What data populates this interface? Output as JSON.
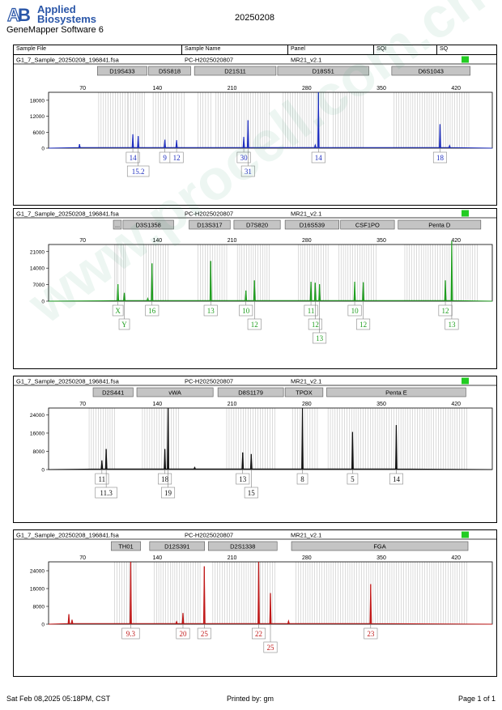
{
  "header": {
    "brand_line1": "Applied",
    "brand_line2": "Biosystems",
    "software": "GeneMapper Software 6",
    "date": "20250208",
    "columns": [
      "Sample File",
      "Sample Name",
      "Panel",
      "SQI",
      "SQ"
    ]
  },
  "footer": {
    "printed_at": "Sat Feb 08,2025 05:18PM, CST",
    "printed_by": "Printed by: gm",
    "page": "Page 1 of 1"
  },
  "watermark": "www.procell.com.cn",
  "status_color": "#22cc22",
  "chart_data": [
    {
      "type": "line",
      "sample_file": "G1_7_Sample_20250208_196841.fsa",
      "sample_name": "PC-H2025020807",
      "panel": "MR21_v2.1",
      "color": "#1f2fbf",
      "x_ticks": [
        70,
        140,
        210,
        280,
        350,
        420
      ],
      "y_ticks": [
        0,
        6000,
        12000,
        18000
      ],
      "ylim": [
        0,
        21000
      ],
      "markers": [
        {
          "label": "D19S433",
          "x0": 83,
          "x1": 131
        },
        {
          "label": "D5S818",
          "x0": 131,
          "x1": 172
        },
        {
          "label": "D21S11",
          "x0": 174,
          "x1": 252
        },
        {
          "label": "D18S51",
          "x0": 252,
          "x1": 339
        },
        {
          "label": "D6S1043",
          "x0": 359,
          "x1": 434
        }
      ],
      "peaks": [
        {
          "x": 67,
          "h": 1500
        },
        {
          "x": 117,
          "h": 5200
        },
        {
          "x": 122,
          "h": 4500
        },
        {
          "x": 147,
          "h": 3200
        },
        {
          "x": 158,
          "h": 3000
        },
        {
          "x": 221,
          "h": 4200
        },
        {
          "x": 225,
          "h": 10500
        },
        {
          "x": 291,
          "h": 21000
        },
        {
          "x": 288,
          "h": 1200
        },
        {
          "x": 405,
          "h": 9000
        },
        {
          "x": 414,
          "h": 1000
        }
      ],
      "alleles": [
        {
          "x": 117,
          "row": 1,
          "text": "14"
        },
        {
          "x": 122,
          "row": 2,
          "text": "15.2"
        },
        {
          "x": 147,
          "row": 1,
          "text": "9"
        },
        {
          "x": 158,
          "row": 1,
          "text": "12"
        },
        {
          "x": 221,
          "row": 1,
          "text": "30"
        },
        {
          "x": 225,
          "row": 2,
          "text": "31"
        },
        {
          "x": 291,
          "row": 1,
          "text": "14"
        },
        {
          "x": 405,
          "row": 1,
          "text": "18"
        }
      ],
      "bins": [
        [
          85,
          112
        ],
        [
          113,
          128
        ],
        [
          136,
          150
        ],
        [
          153,
          165
        ],
        [
          178,
          190
        ],
        [
          195,
          245
        ],
        [
          258,
          300
        ],
        [
          305,
          333
        ],
        [
          362,
          432
        ]
      ]
    },
    {
      "type": "line",
      "sample_file": "G1_7_Sample_20250208_196841.fsa",
      "sample_name": "PC-H2025020807",
      "panel": "MR21_v2.1",
      "color": "#1e9e1e",
      "x_ticks": [
        70,
        140,
        210,
        280,
        350,
        420
      ],
      "y_ticks": [
        0,
        7000,
        14000,
        21000
      ],
      "ylim": [
        0,
        24000
      ],
      "markers": [
        {
          "label": "...",
          "x0": 98,
          "x1": 107
        },
        {
          "label": "D3S1358",
          "x0": 107,
          "x1": 156
        },
        {
          "label": "D13S317",
          "x0": 169,
          "x1": 209
        },
        {
          "label": "D7S820",
          "x0": 211,
          "x1": 256
        },
        {
          "label": "D16S539",
          "x0": 259,
          "x1": 311
        },
        {
          "label": "CSF1PO",
          "x0": 311,
          "x1": 363
        },
        {
          "label": "Penta D",
          "x0": 365,
          "x1": 444
        }
      ],
      "peaks": [
        {
          "x": 103,
          "h": 7200
        },
        {
          "x": 109,
          "h": 3500
        },
        {
          "x": 135,
          "h": 16000
        },
        {
          "x": 131,
          "h": 1200
        },
        {
          "x": 190,
          "h": 17000
        },
        {
          "x": 223,
          "h": 4500
        },
        {
          "x": 231,
          "h": 8800
        },
        {
          "x": 284,
          "h": 8200
        },
        {
          "x": 288,
          "h": 7800
        },
        {
          "x": 292,
          "h": 7200
        },
        {
          "x": 325,
          "h": 8200
        },
        {
          "x": 333,
          "h": 8000
        },
        {
          "x": 410,
          "h": 8800
        },
        {
          "x": 416,
          "h": 25500
        }
      ],
      "alleles": [
        {
          "x": 103,
          "row": 1,
          "text": "X"
        },
        {
          "x": 109,
          "row": 2,
          "text": "Y"
        },
        {
          "x": 135,
          "row": 1,
          "text": "16"
        },
        {
          "x": 190,
          "row": 1,
          "text": "13"
        },
        {
          "x": 223,
          "row": 1,
          "text": "10"
        },
        {
          "x": 231,
          "row": 2,
          "text": "12"
        },
        {
          "x": 284,
          "row": 1,
          "text": "11"
        },
        {
          "x": 288,
          "row": 2,
          "text": "12"
        },
        {
          "x": 292,
          "row": 3,
          "text": "13"
        },
        {
          "x": 325,
          "row": 1,
          "text": "10"
        },
        {
          "x": 333,
          "row": 2,
          "text": "12"
        },
        {
          "x": 410,
          "row": 1,
          "text": "12"
        },
        {
          "x": 416,
          "row": 2,
          "text": "13"
        }
      ],
      "bins": [
        [
          100,
          103
        ],
        [
          106,
          110
        ],
        [
          127,
          150
        ],
        [
          178,
          205
        ],
        [
          215,
          245
        ],
        [
          272,
          300
        ],
        [
          310,
          345
        ],
        [
          372,
          440
        ]
      ]
    },
    {
      "type": "line",
      "sample_file": "G1_7_Sample_20250208_196841.fsa",
      "sample_name": "PC-H2025020807",
      "panel": "MR21_v2.1",
      "color": "#111111",
      "x_ticks": [
        70,
        140,
        210,
        280,
        350,
        420
      ],
      "y_ticks": [
        0,
        8000,
        16000,
        24000
      ],
      "ylim": [
        0,
        27000
      ],
      "markers": [
        {
          "label": "D2S441",
          "x0": 79,
          "x1": 118
        },
        {
          "label": "vWA",
          "x0": 120,
          "x1": 193
        },
        {
          "label": "D8S1179",
          "x0": 196,
          "x1": 259
        },
        {
          "label": "TPOX",
          "x0": 259,
          "x1": 296
        },
        {
          "label": "Penta E",
          "x0": 298,
          "x1": 430
        }
      ],
      "peaks": [
        {
          "x": 88,
          "h": 4000
        },
        {
          "x": 92,
          "h": 9000
        },
        {
          "x": 147,
          "h": 9000
        },
        {
          "x": 150,
          "h": 27000
        },
        {
          "x": 220,
          "h": 7500
        },
        {
          "x": 228,
          "h": 6800
        },
        {
          "x": 276,
          "h": 27000
        },
        {
          "x": 323,
          "h": 16500
        },
        {
          "x": 364,
          "h": 19500
        },
        {
          "x": 175,
          "h": 1000
        }
      ],
      "alleles": [
        {
          "x": 88,
          "row": 1,
          "text": "11"
        },
        {
          "x": 92,
          "row": 2,
          "text": "11.3"
        },
        {
          "x": 147,
          "row": 1,
          "text": "18"
        },
        {
          "x": 150,
          "row": 2,
          "text": "19"
        },
        {
          "x": 220,
          "row": 1,
          "text": "13"
        },
        {
          "x": 228,
          "row": 2,
          "text": "15"
        },
        {
          "x": 276,
          "row": 1,
          "text": "8"
        },
        {
          "x": 323,
          "row": 1,
          "text": "5"
        },
        {
          "x": 364,
          "row": 1,
          "text": "14"
        }
      ],
      "bins": [
        [
          76,
          100
        ],
        [
          126,
          160
        ],
        [
          205,
          250
        ],
        [
          267,
          290
        ],
        [
          300,
          430
        ]
      ]
    },
    {
      "type": "line",
      "sample_file": "G1_7_Sample_20250208_196841.fsa",
      "sample_name": "PC-H2025020807",
      "panel": "MR21_v2.1",
      "color": "#c01818",
      "x_ticks": [
        70,
        140,
        210,
        280,
        350,
        420
      ],
      "y_ticks": [
        0,
        8000,
        16000,
        24000
      ],
      "ylim": [
        0,
        28000
      ],
      "markers": [
        {
          "label": "TH01",
          "x0": 96,
          "x1": 125
        },
        {
          "label": "D12S391",
          "x0": 132,
          "x1": 185
        },
        {
          "label": "D2S1338",
          "x0": 187,
          "x1": 253
        },
        {
          "label": "FGA",
          "x0": 265,
          "x1": 432
        }
      ],
      "peaks": [
        {
          "x": 57,
          "h": 4500
        },
        {
          "x": 60,
          "h": 2000
        },
        {
          "x": 115,
          "h": 28000
        },
        {
          "x": 164,
          "h": 5000
        },
        {
          "x": 184,
          "h": 26000
        },
        {
          "x": 235,
          "h": 28000
        },
        {
          "x": 246,
          "h": 14000
        },
        {
          "x": 340,
          "h": 18000
        },
        {
          "x": 158,
          "h": 1200
        },
        {
          "x": 263,
          "h": 1500
        }
      ],
      "alleles": [
        {
          "x": 115,
          "row": 1,
          "text": "9.3"
        },
        {
          "x": 164,
          "row": 1,
          "text": "20"
        },
        {
          "x": 184,
          "row": 1,
          "text": "25"
        },
        {
          "x": 235,
          "row": 1,
          "text": "22"
        },
        {
          "x": 246,
          "row": 2,
          "text": "25"
        },
        {
          "x": 340,
          "row": 1,
          "text": "23"
        }
      ],
      "bins": [
        [
          100,
          120
        ],
        [
          137,
          180
        ],
        [
          192,
          250
        ],
        [
          270,
          430
        ]
      ]
    }
  ]
}
